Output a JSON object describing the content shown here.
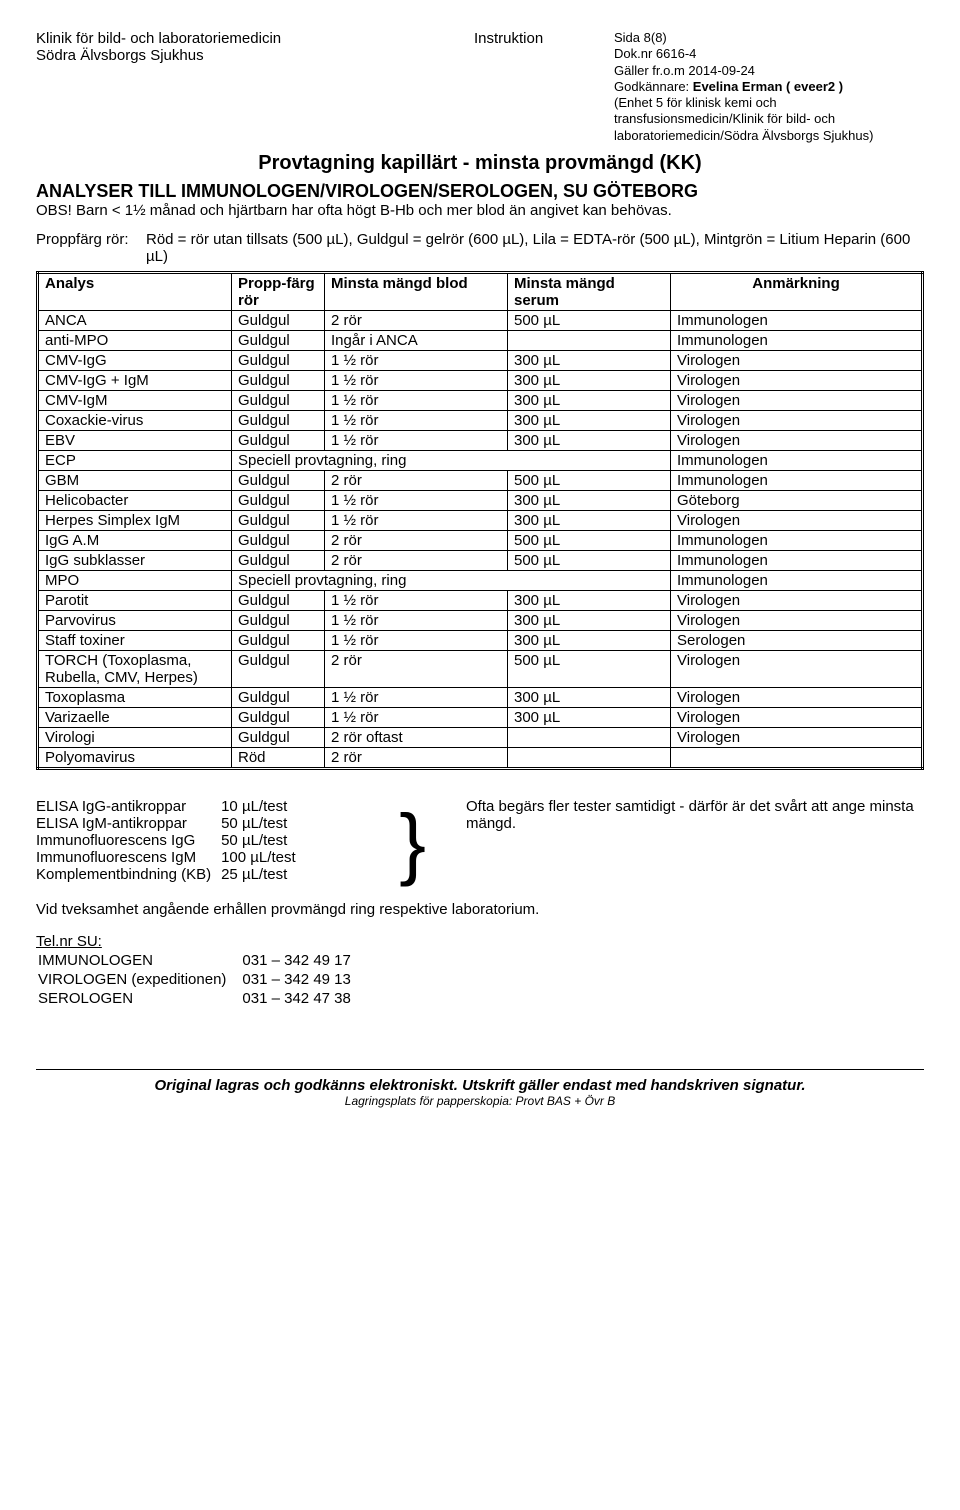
{
  "header": {
    "dept1": "Klinik för bild- och laboratoriemedicin",
    "dept2": "Södra Älvsborgs Sjukhus",
    "docType": "Instruktion",
    "page": "Sida 8(8)",
    "docnr": "Dok.nr 6616-4",
    "valid": "Gäller fr.o.m 2014-09-24",
    "approverLabel": "Godkännare: ",
    "approver": "Evelina Erman ( eveer2 )",
    "unit": "(Enhet 5 för klinisk kemi och transfusionsmedicin/Klinik för bild- och laboratoriemedicin/Södra Älvsborgs Sjukhus)"
  },
  "title": "Provtagning kapillärt - minsta provmängd (KK)",
  "section": "ANALYSER TILL IMMUNOLOGEN/VIROLOGEN/SEROLOGEN, SU GÖTEBORG",
  "obs": "OBS! Barn < 1½ månad och hjärtbarn har ofta högt B-Hb och mer blod än angivet kan behövas.",
  "legend": {
    "label": "Proppfärg rör:",
    "text": "Röd = rör utan tillsats (500 µL), Guldgul = gelrör (600 µL), Lila = EDTA-rör (500 µL), Mintgrön = Litium Heparin (600 µL)"
  },
  "cols": {
    "analys": "Analys",
    "farg": "Propp-färg rör",
    "blod": "Minsta mängd blod",
    "serum": "Minsta mängd serum",
    "anm": "Anmärkning"
  },
  "rows": [
    {
      "a": "ANCA",
      "f": "Guldgul",
      "b": "2 rör",
      "s": "500 µL",
      "n": "Immunologen"
    },
    {
      "a": "anti-MPO",
      "f": "Guldgul",
      "b": "Ingår i ANCA",
      "s": "",
      "n": "Immunologen"
    },
    {
      "a": "CMV-IgG",
      "f": "Guldgul",
      "b": "1 ½ rör",
      "s": "300 µL",
      "n": "Virologen"
    },
    {
      "a": "CMV-IgG + IgM",
      "f": "Guldgul",
      "b": "1 ½ rör",
      "s": "300 µL",
      "n": "Virologen"
    },
    {
      "a": "CMV-IgM",
      "f": "Guldgul",
      "b": "1 ½ rör",
      "s": "300 µL",
      "n": "Virologen"
    },
    {
      "a": "Coxackie-virus",
      "f": "Guldgul",
      "b": "1 ½ rör",
      "s": "300 µL",
      "n": "Virologen"
    },
    {
      "a": "EBV",
      "f": "Guldgul",
      "b": "1 ½ rör",
      "s": "300 µL",
      "n": "Virologen"
    },
    {
      "a": "ECP",
      "f": "",
      "b": "",
      "s": "",
      "n": "Immunologen",
      "span": "Speciell provtagning, ring"
    },
    {
      "a": "GBM",
      "f": "Guldgul",
      "b": "2 rör",
      "s": "500 µL",
      "n": "Immunologen"
    },
    {
      "a": "Helicobacter",
      "f": "Guldgul",
      "b": "1 ½ rör",
      "s": "300 µL",
      "n": "Göteborg"
    },
    {
      "a": "Herpes Simplex IgM",
      "f": "Guldgul",
      "b": "1 ½ rör",
      "s": "300 µL",
      "n": "Virologen"
    },
    {
      "a": "IgG A.M",
      "f": "Guldgul",
      "b": "2 rör",
      "s": "500 µL",
      "n": "Immunologen"
    },
    {
      "a": "IgG subklasser",
      "f": "Guldgul",
      "b": "2 rör",
      "s": "500 µL",
      "n": "Immunologen"
    },
    {
      "a": "MPO",
      "f": "",
      "b": "",
      "s": "",
      "n": "Immunologen",
      "span": "Speciell provtagning, ring"
    },
    {
      "a": "Parotit",
      "f": "Guldgul",
      "b": "1 ½ rör",
      "s": "300 µL",
      "n": "Virologen"
    },
    {
      "a": "Parvovirus",
      "f": "Guldgul",
      "b": "1 ½ rör",
      "s": "300 µL",
      "n": "Virologen"
    },
    {
      "a": "Staff toxiner",
      "f": "Guldgul",
      "b": "1 ½ rör",
      "s": "300 µL",
      "n": "Serologen"
    },
    {
      "a": "TORCH (Toxoplasma, Rubella, CMV, Herpes)",
      "f": "Guldgul",
      "b": "2 rör",
      "s": "500 µL",
      "n": "Virologen"
    },
    {
      "a": "Toxoplasma",
      "f": "Guldgul",
      "b": "1 ½ rör",
      "s": "300 µL",
      "n": "Virologen"
    },
    {
      "a": "Varizaelle",
      "f": "Guldgul",
      "b": "1 ½ rör",
      "s": "300 µL",
      "n": "Virologen"
    },
    {
      "a": "Virologi",
      "f": "Guldgul",
      "b": "2 rör oftast",
      "s": "",
      "n": "Virologen"
    },
    {
      "a": "Polyomavirus",
      "f": "Röd",
      "b": "2 rör",
      "s": "",
      "n": ""
    }
  ],
  "tests": [
    {
      "name": "ELISA IgG-antikroppar",
      "vol": "10 µL/test"
    },
    {
      "name": "ELISA IgM-antikroppar",
      "vol": "50 µL/test"
    },
    {
      "name": "Immunofluorescens IgG",
      "vol": "50 µL/test"
    },
    {
      "name": "Immunofluorescens IgM",
      "vol": "100 µL/test"
    },
    {
      "name": "Komplementbindning (KB)",
      "vol": "25 µL/test"
    }
  ],
  "testsNote": "Ofta begärs fler tester samtidigt - därför är det svårt att ange minsta mängd.",
  "advice": "Vid tveksamhet angående erhållen provmängd ring respektive laboratorium.",
  "tel": {
    "title": "Tel.nr SU:",
    "rows": [
      {
        "name": "IMMUNOLOGEN",
        "num": "031 – 342 49 17"
      },
      {
        "name": "VIROLOGEN (expeditionen)",
        "num": "031 – 342 49 13"
      },
      {
        "name": "SEROLOGEN",
        "num": "031 – 342 47 38"
      }
    ]
  },
  "footer": {
    "main": "Original lagras och godkänns elektroniskt. Utskrift gäller endast med handskriven signatur.",
    "sub": "Lagringsplats för papperskopia: Provt BAS + Övr B"
  }
}
